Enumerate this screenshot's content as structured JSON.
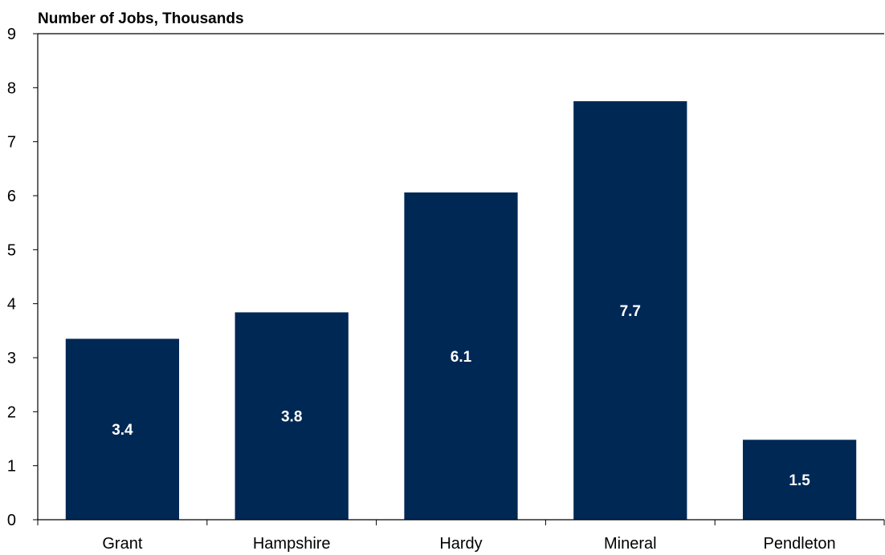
{
  "chart_data": {
    "type": "bar",
    "title": "",
    "ylabel": "Number of Jobs, Thousands",
    "xlabel": "",
    "categories": [
      "Grant",
      "Hampshire",
      "Hardy",
      "Mineral",
      "Pendleton"
    ],
    "values": [
      3.35,
      3.84,
      6.06,
      7.75,
      1.48
    ],
    "data_labels": [
      "3.4",
      "3.8",
      "6.1",
      "7.7",
      "1.5"
    ],
    "ylim": [
      0,
      9
    ],
    "yticks": [
      "0",
      "1",
      "2",
      "3",
      "4",
      "5",
      "6",
      "7",
      "8",
      "9"
    ],
    "grid": false,
    "legend": "none",
    "bar_color": "#002855",
    "label_color": "#ffffff"
  }
}
